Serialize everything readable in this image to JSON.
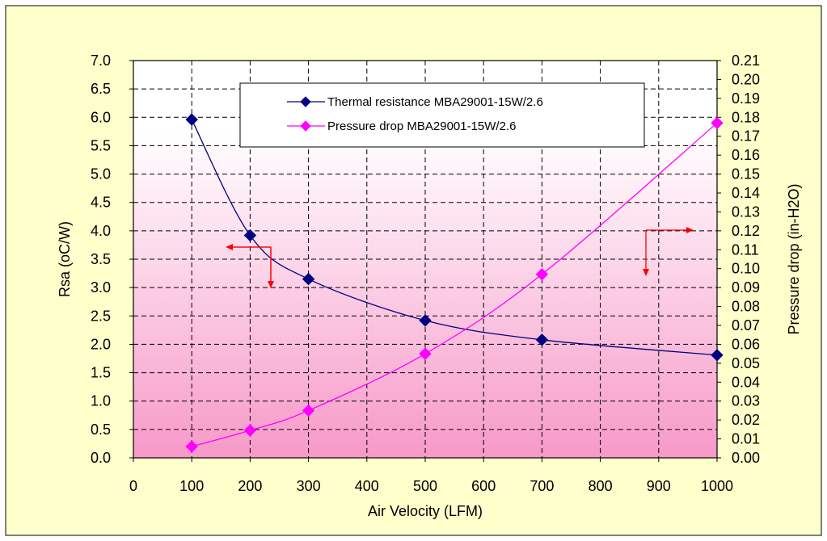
{
  "chart_data": {
    "type": "line",
    "title": "",
    "xlabel": "Air Velocity (LFM)",
    "ylabel_left": "Rsa (oC/W)",
    "ylabel_right": "Pressure drop (in-H2O)",
    "xlim": [
      0,
      1000
    ],
    "ylim_left": [
      0,
      7
    ],
    "ylim_right": [
      0,
      0.21
    ],
    "x_ticks": [
      "0",
      "100",
      "200",
      "300",
      "400",
      "500",
      "600",
      "700",
      "800",
      "900",
      "1000"
    ],
    "y_left_ticks": [
      "0.0",
      "0.5",
      "1.0",
      "1.5",
      "2.0",
      "2.5",
      "3.0",
      "3.5",
      "4.0",
      "4.5",
      "5.0",
      "5.5",
      "6.0",
      "6.5",
      "7.0"
    ],
    "y_right_ticks": [
      "0.00",
      "0.01",
      "0.02",
      "0.03",
      "0.04",
      "0.05",
      "0.06",
      "0.07",
      "0.08",
      "0.09",
      "0.10",
      "0.11",
      "0.12",
      "0.13",
      "0.14",
      "0.15",
      "0.16",
      "0.17",
      "0.18",
      "0.19",
      "0.20",
      "0.21"
    ],
    "grid": true,
    "legend_position": "top-center",
    "series": [
      {
        "name": "Thermal resistance MBA29001-15W/2.6",
        "axis": "left",
        "color": "#000080",
        "marker": "diamond",
        "x": [
          100,
          200,
          300,
          500,
          700,
          1000
        ],
        "y": [
          5.96,
          3.92,
          3.15,
          2.42,
          2.08,
          1.81
        ]
      },
      {
        "name": "Pressure drop MBA29001-15W/2.6",
        "axis": "right",
        "color": "#FF00FF",
        "marker": "diamond",
        "x": [
          100,
          200,
          300,
          500,
          700,
          1000
        ],
        "y": [
          0.006,
          0.0145,
          0.025,
          0.055,
          0.097,
          0.177
        ]
      }
    ],
    "annotations": [
      {
        "type": "axis-pointer-arrow",
        "points_to": "left-axis",
        "color": "#FF0000"
      },
      {
        "type": "axis-pointer-arrow",
        "points_to": "right-axis",
        "color": "#FF0000"
      }
    ],
    "colors": {
      "frame_background": "#FFFFCC",
      "plot_gradient_top": "#FFFFFF",
      "plot_gradient_bottom": "#F799C8",
      "grid": "#000000"
    }
  }
}
